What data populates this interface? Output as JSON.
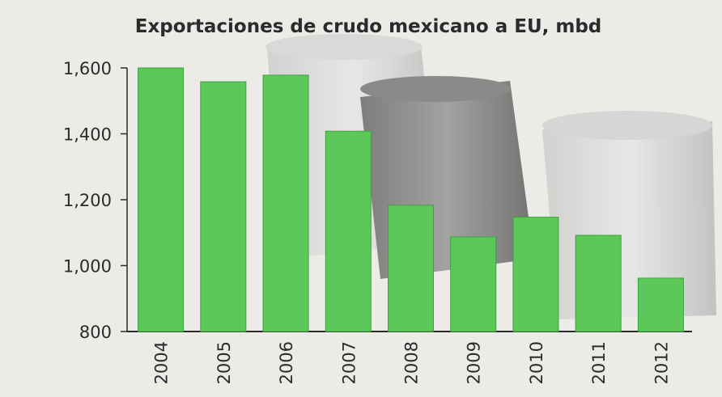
{
  "chart_data": {
    "type": "bar",
    "title": "Exportaciones de crudo mexicano a EU, mbd",
    "xlabel": "",
    "ylabel": "",
    "categories": [
      "2004",
      "2005",
      "2006",
      "2007",
      "2008",
      "2009",
      "2010",
      "2011",
      "2012"
    ],
    "values": [
      1600,
      1558,
      1578,
      1408,
      1183,
      1087,
      1147,
      1092,
      962
    ],
    "ylim": [
      800,
      1600
    ],
    "yticks": [
      800,
      1000,
      1200,
      1400,
      1600
    ],
    "ytick_labels": [
      "800",
      "1,000",
      "1,200",
      "1,400",
      "1,600"
    ],
    "grid": false,
    "legend": "none",
    "colors": {
      "bar": "#5cc85a",
      "bar_edge": "#3fa23d",
      "axis": "#2a2a2a",
      "text": "#2b2b2b"
    }
  }
}
